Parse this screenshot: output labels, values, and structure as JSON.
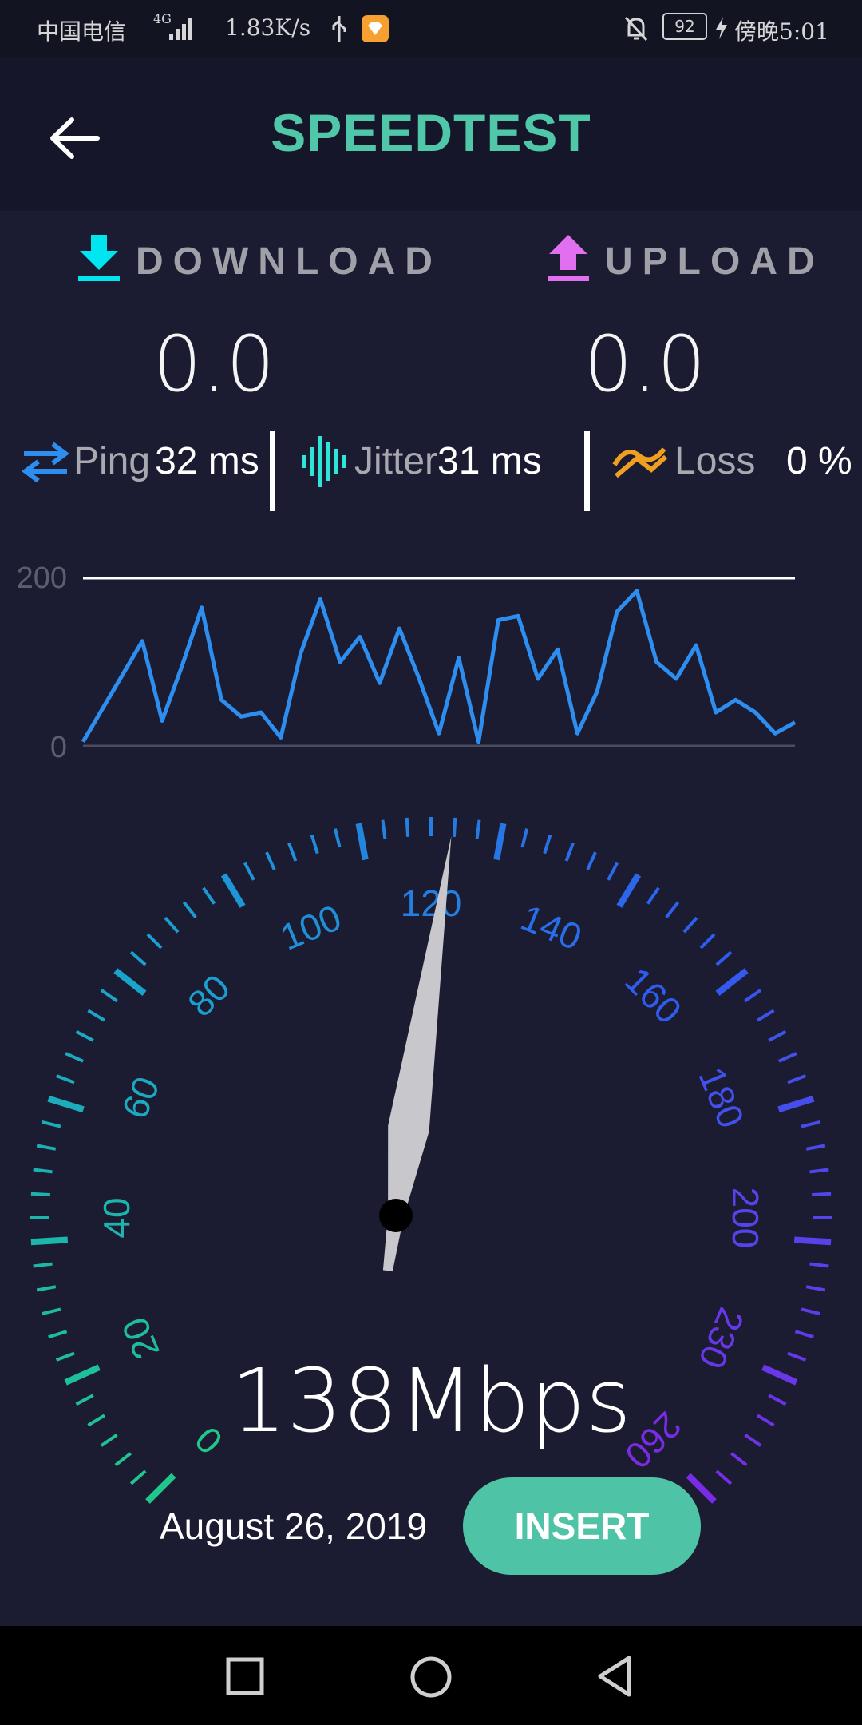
{
  "status_bar": {
    "carrier": "中国电信",
    "network": "4G",
    "speed": "1.83K/s",
    "battery": "92",
    "time": "傍晚5:01"
  },
  "app_bar": {
    "title": "SPEEDTEST"
  },
  "download": {
    "label": "DOWNLOAD",
    "value": "0.0",
    "icon_color": "#00e5f0"
  },
  "upload": {
    "label": "UPLOAD",
    "value": "0.0",
    "icon_color": "#e070f0"
  },
  "metrics": {
    "ping": {
      "label": "Ping",
      "value": "32 ms",
      "icon_color": "#2d8ef0"
    },
    "jitter": {
      "label": "Jitter",
      "value": "31 ms",
      "icon_color": "#2ee6d8"
    },
    "loss": {
      "label": "Loss",
      "value": "0 %",
      "icon_color": "#f0a020"
    }
  },
  "chart_data": {
    "type": "line",
    "y_tick_labels": [
      "200",
      "0"
    ],
    "ylim": [
      0,
      200
    ],
    "line_color": "#2d8ef0",
    "values": [
      5,
      45,
      85,
      125,
      30,
      95,
      165,
      55,
      35,
      40,
      10,
      110,
      175,
      100,
      130,
      75,
      140,
      80,
      15,
      105,
      5,
      150,
      155,
      80,
      115,
      15,
      65,
      160,
      185,
      100,
      80,
      120,
      40,
      55,
      40,
      15,
      28
    ]
  },
  "gauge": {
    "min": 0,
    "max": 260,
    "value": 138,
    "tick_labels": [
      "0",
      "20",
      "40",
      "60",
      "80",
      "100",
      "120",
      "140",
      "160",
      "180",
      "200",
      "230",
      "260"
    ],
    "colors": {
      "low": "#1fc88a",
      "mid": "#1aa0d0",
      "high": "#2f5cf0",
      "max": "#7a2be6"
    },
    "needle_color": "#c8c8cc"
  },
  "readout": {
    "speed": "138Mbps"
  },
  "footer": {
    "date": "August 26, 2019",
    "insert_label": "INSERT"
  }
}
